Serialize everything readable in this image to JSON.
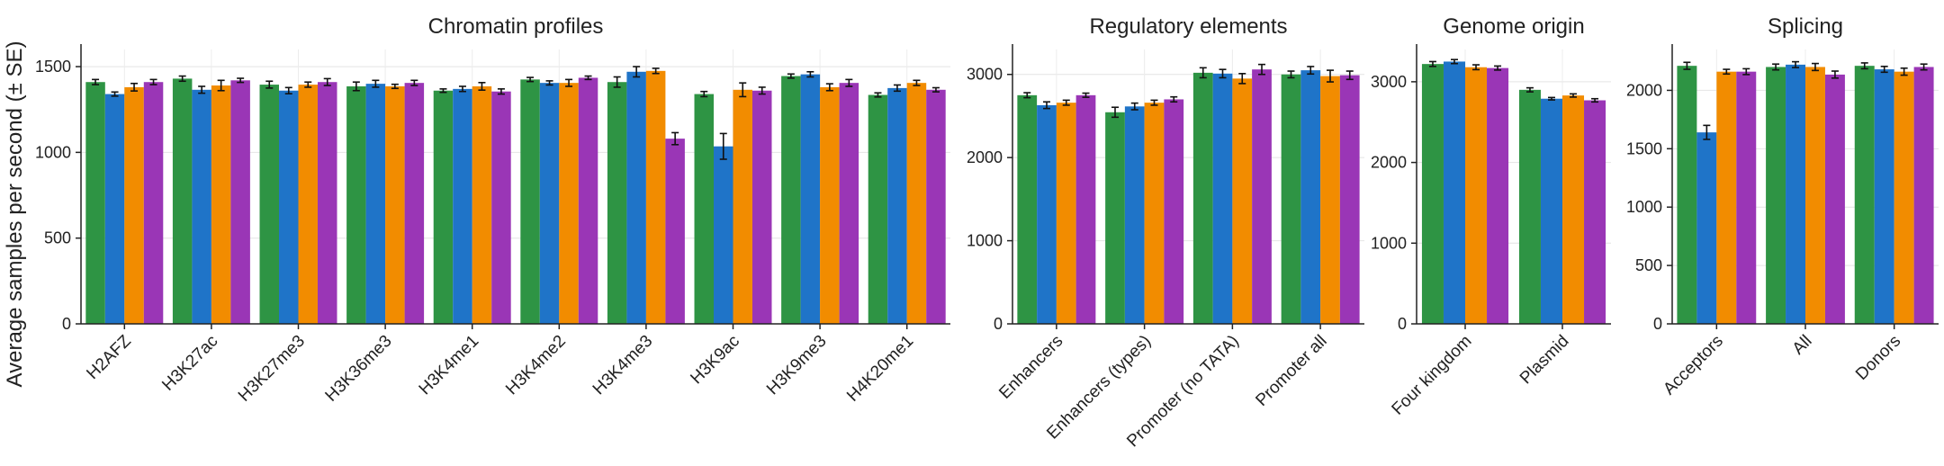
{
  "ylabel": "Average samples per second (± SE)",
  "colors": [
    "#2e9444",
    "#1f74c8",
    "#f28c00",
    "#9a36b6"
  ],
  "chart_data": [
    {
      "type": "bar",
      "title": "Chromatin profiles",
      "categories": [
        "H2AFZ",
        "H3K27ac",
        "H3K27me3",
        "H3K36me3",
        "H3K4me1",
        "H3K4me2",
        "H3K4me3",
        "H3K9ac",
        "H3K9me3",
        "H4K20me1"
      ],
      "ylim": [
        0,
        1600
      ],
      "yticks": [
        0,
        500,
        1000,
        1500
      ],
      "series": [
        {
          "values": [
            1410,
            1430,
            1395,
            1385,
            1360,
            1425,
            1410,
            1340,
            1445,
            1335
          ],
          "errors": [
            15,
            15,
            20,
            25,
            10,
            12,
            30,
            15,
            12,
            12
          ]
        },
        {
          "values": [
            1340,
            1365,
            1360,
            1400,
            1370,
            1405,
            1470,
            1035,
            1455,
            1375
          ],
          "errors": [
            12,
            20,
            18,
            20,
            15,
            12,
            30,
            75,
            15,
            18
          ]
        },
        {
          "values": [
            1380,
            1390,
            1395,
            1385,
            1385,
            1405,
            1475,
            1365,
            1380,
            1405
          ],
          "errors": [
            22,
            30,
            15,
            12,
            22,
            20,
            15,
            40,
            20,
            15
          ]
        },
        {
          "values": [
            1410,
            1420,
            1410,
            1405,
            1355,
            1435,
            1080,
            1360,
            1405,
            1365
          ],
          "errors": [
            15,
            12,
            20,
            15,
            15,
            10,
            35,
            20,
            20,
            12
          ]
        }
      ]
    },
    {
      "type": "bar",
      "title": "Regulatory elements",
      "categories": [
        "Enhancers",
        "Enhancers (types)",
        "Promoter (no TATA)",
        "Promoter all"
      ],
      "ylim": [
        0,
        3300
      ],
      "yticks": [
        0,
        1000,
        2000,
        3000
      ],
      "series": [
        {
          "values": [
            2750,
            2545,
            3020,
            3000
          ],
          "errors": [
            30,
            60,
            60,
            40
          ]
        },
        {
          "values": [
            2630,
            2615,
            3010,
            3050
          ],
          "errors": [
            40,
            40,
            50,
            45
          ]
        },
        {
          "values": [
            2660,
            2660,
            2950,
            2980
          ],
          "errors": [
            30,
            30,
            60,
            70
          ]
        },
        {
          "values": [
            2750,
            2700,
            3060,
            2990
          ],
          "errors": [
            25,
            30,
            60,
            50
          ]
        }
      ]
    },
    {
      "type": "bar",
      "title": "Genome origin",
      "categories": [
        "Four kingdom",
        "Plasmid"
      ],
      "ylim": [
        0,
        3400
      ],
      "yticks": [
        0,
        1000,
        2000,
        3000
      ],
      "series": [
        {
          "values": [
            3220,
            2900
          ],
          "errors": [
            30,
            25
          ]
        },
        {
          "values": [
            3250,
            2790
          ],
          "errors": [
            25,
            15
          ]
        },
        {
          "values": [
            3180,
            2830
          ],
          "errors": [
            30,
            20
          ]
        },
        {
          "values": [
            3170,
            2770
          ],
          "errors": [
            25,
            20
          ]
        }
      ]
    },
    {
      "type": "bar",
      "title": "Splicing",
      "categories": [
        "Acceptors",
        "All",
        "Donors"
      ],
      "ylim": [
        0,
        2350
      ],
      "yticks": [
        0,
        500,
        1000,
        1500,
        2000
      ],
      "series": [
        {
          "values": [
            2210,
            2200,
            2210
          ],
          "errors": [
            30,
            25,
            25
          ]
        },
        {
          "values": [
            1640,
            2220,
            2180
          ],
          "errors": [
            60,
            25,
            25
          ]
        },
        {
          "values": [
            2160,
            2200,
            2160
          ],
          "errors": [
            20,
            30,
            30
          ]
        },
        {
          "values": [
            2160,
            2135,
            2200
          ],
          "errors": [
            25,
            30,
            25
          ]
        }
      ]
    }
  ]
}
